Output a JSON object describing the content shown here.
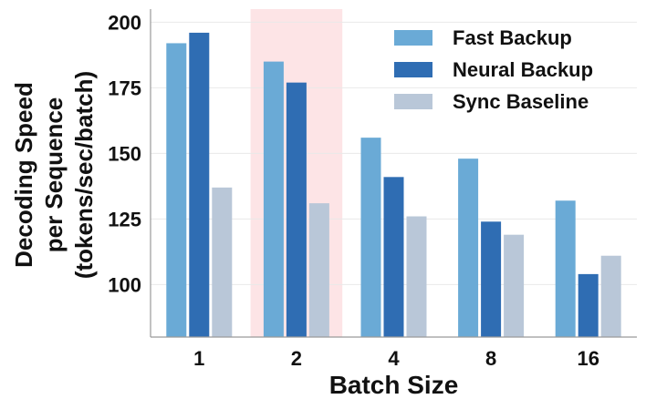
{
  "chart_data": {
    "type": "bar",
    "xlabel": "Batch Size",
    "ylabel_lines": [
      "Decoding Speed",
      "per Sequence",
      "(tokens/sec/batch)"
    ],
    "categories": [
      "1",
      "2",
      "4",
      "8",
      "16"
    ],
    "ylim": [
      80,
      205
    ],
    "yticks": [
      100,
      125,
      150,
      175,
      200
    ],
    "grid": "horizontal",
    "legend_position": "top-right",
    "highlighted_category": "2",
    "highlight_color": "#fde4e6",
    "series": [
      {
        "name": "Fast Backup",
        "color": "#6aaad6",
        "values": [
          192,
          185,
          156,
          148,
          132
        ]
      },
      {
        "name": "Neural Backup",
        "color": "#2f6db3",
        "values": [
          196,
          177,
          141,
          124,
          104
        ]
      },
      {
        "name": "Sync Baseline",
        "color": "#b9c7d8",
        "values": [
          137,
          131,
          126,
          119,
          111
        ]
      }
    ]
  }
}
